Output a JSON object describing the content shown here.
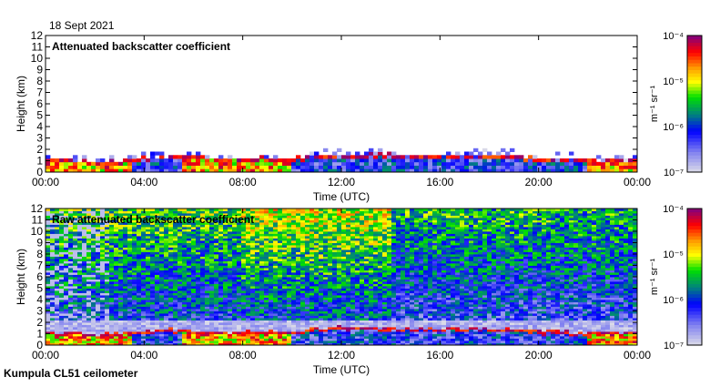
{
  "date_label": "18 Sept 2021",
  "footer": "Kumpula CL51 ceilometer",
  "chart_data": [
    {
      "type": "heatmap",
      "title": "Attenuated backscatter coefficient",
      "xlabel": "Time (UTC)",
      "ylabel": "Height (km)",
      "xlim_hours": [
        0,
        24
      ],
      "ylim": [
        0,
        12
      ],
      "x_ticks": [
        "00:00",
        "04:00",
        "08:00",
        "12:00",
        "16:00",
        "20:00",
        "00:00"
      ],
      "y_ticks": [
        "0",
        "1",
        "2",
        "3",
        "4",
        "5",
        "6",
        "7",
        "8",
        "9",
        "10",
        "11",
        "12"
      ],
      "colorbar": {
        "label": "m⁻¹ sr⁻¹",
        "scale": "log",
        "range": [
          1e-07,
          0.0001
        ],
        "ticks": [
          "10⁻⁷",
          "10⁻⁶",
          "10⁻⁵",
          "10⁻⁴"
        ]
      },
      "boundary_layer_top_km": [
        1.2,
        1.1,
        1.0,
        1.0,
        1.3,
        1.5,
        1.3,
        1.2,
        1.2,
        1.3,
        1.3,
        1.5,
        1.6,
        1.6,
        1.5,
        1.5,
        1.5,
        1.6,
        1.5,
        1.4,
        1.3,
        1.2,
        1.2,
        1.1,
        1.2
      ],
      "masked_above_boundary_layer": true
    },
    {
      "type": "heatmap",
      "title": "Raw attenuated backscatter coefficient",
      "xlabel": "Time (UTC)",
      "ylabel": "Height (km)",
      "xlim_hours": [
        0,
        24
      ],
      "ylim": [
        0,
        12
      ],
      "x_ticks": [
        "00:00",
        "04:00",
        "08:00",
        "12:00",
        "16:00",
        "20:00",
        "00:00"
      ],
      "y_ticks": [
        "0",
        "1",
        "2",
        "3",
        "4",
        "5",
        "6",
        "7",
        "8",
        "9",
        "10",
        "11",
        "12"
      ],
      "colorbar": {
        "label": "m⁻¹ sr⁻¹",
        "scale": "log",
        "range": [
          1e-07,
          0.0001
        ],
        "ticks": [
          "10⁻⁷",
          "10⁻⁶",
          "10⁻⁵",
          "10⁻⁴"
        ]
      },
      "boundary_layer_top_km": [
        1.2,
        1.1,
        1.0,
        1.0,
        1.3,
        1.5,
        1.3,
        1.2,
        1.2,
        1.3,
        1.3,
        1.5,
        1.6,
        1.6,
        1.5,
        1.5,
        1.5,
        1.6,
        1.5,
        1.4,
        1.3,
        1.2,
        1.2,
        1.1,
        1.2
      ],
      "masked_above_boundary_layer": false
    }
  ]
}
